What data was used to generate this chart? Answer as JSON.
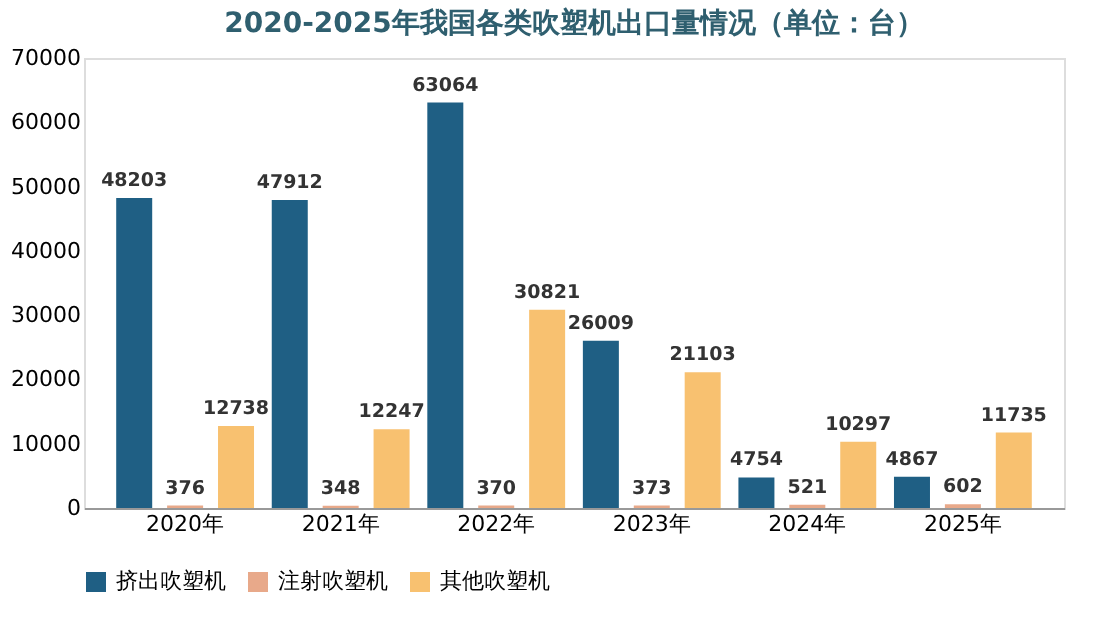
{
  "chart_data": {
    "type": "bar",
    "title": "2020-2025年我国各类吹塑机出口量情况（单位：台）",
    "categories": [
      "2020年",
      "2021年",
      "2022年",
      "2023年",
      "2024年",
      "2025年"
    ],
    "series": [
      {
        "name": "挤出吹塑机",
        "color": "#1f5f84",
        "values": [
          48203,
          47912,
          63064,
          26009,
          4754,
          4867
        ]
      },
      {
        "name": "注射吹塑机",
        "color": "#e8a98a",
        "values": [
          376,
          348,
          370,
          373,
          521,
          602
        ]
      },
      {
        "name": "其他吹塑机",
        "color": "#f8c170",
        "values": [
          12738,
          12247,
          30821,
          21103,
          10297,
          11735
        ]
      }
    ],
    "ylim": [
      0,
      70000
    ],
    "yticks": [
      0,
      10000,
      20000,
      30000,
      40000,
      50000,
      60000,
      70000
    ],
    "data_labels": true,
    "legend": "bottom",
    "grid": false
  }
}
